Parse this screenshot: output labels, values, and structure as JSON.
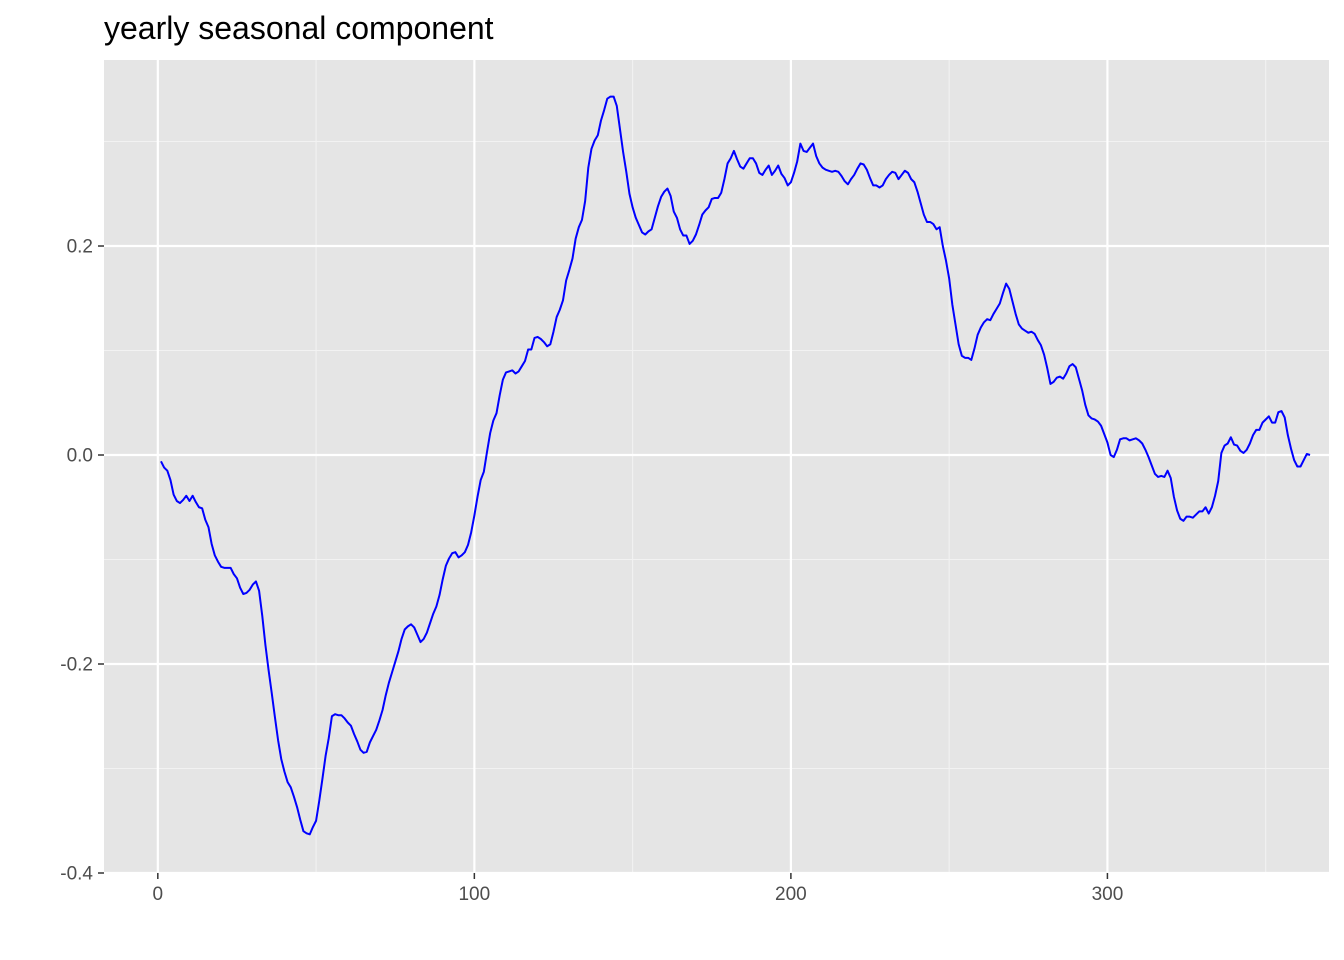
{
  "colors": {
    "panel_background": "#e5e5e5",
    "grid_major": "#ffffff",
    "grid_minor": "#f2f2f2",
    "line": "#0000ff",
    "tick_label": "#4d4d4d",
    "tick_mark": "#333333"
  },
  "chart_data": {
    "type": "line",
    "title": "yearly seasonal component",
    "xlabel": "",
    "ylabel": "",
    "xlim": [
      -17,
      370
    ],
    "ylim": [
      -0.4,
      0.378
    ],
    "x_ticks": [
      0,
      100,
      200,
      300
    ],
    "x_tick_labels": [
      "0",
      "100",
      "200",
      "300"
    ],
    "y_ticks": [
      -0.4,
      -0.2,
      0.0,
      0.2
    ],
    "y_tick_labels": [
      "-0.4",
      "-0.2",
      "0.0",
      "0.2"
    ],
    "x_minor": [
      50,
      150,
      250,
      350
    ],
    "y_minor": [
      -0.3,
      -0.1,
      0.1,
      0.3
    ],
    "grid": true,
    "legend": "none",
    "series": [
      {
        "x": [
          1,
          2,
          3,
          4,
          5,
          6,
          7,
          8,
          9,
          10,
          11,
          12,
          13,
          14,
          15,
          16,
          17,
          18,
          19,
          20,
          21,
          22,
          23,
          24,
          25,
          26,
          27,
          28,
          29,
          30,
          31,
          32,
          33,
          34,
          35,
          36,
          37,
          38,
          39,
          40,
          41,
          42,
          43,
          44,
          45,
          46,
          47,
          48,
          49,
          50,
          51,
          52,
          53,
          54,
          55,
          56,
          57,
          58,
          59,
          60,
          61,
          62,
          63,
          64,
          65,
          66,
          67,
          68,
          69,
          70,
          71,
          72,
          73,
          74,
          75,
          76,
          77,
          78,
          79,
          80,
          81,
          82,
          83,
          84,
          85,
          86,
          87,
          88,
          89,
          90,
          91,
          92,
          93,
          94,
          95,
          96,
          97,
          98,
          99,
          100,
          101,
          102,
          103,
          104,
          105,
          106,
          107,
          108,
          109,
          110,
          111,
          112,
          113,
          114,
          115,
          116,
          117,
          118,
          119,
          120,
          121,
          122,
          123,
          124,
          125,
          126,
          127,
          128,
          129,
          130,
          131,
          132,
          133,
          134,
          135,
          136,
          137,
          138,
          139,
          140,
          141,
          142,
          143,
          144,
          145,
          146,
          147,
          148,
          149,
          150,
          151,
          152,
          153,
          154,
          155,
          156,
          157,
          158,
          159,
          160,
          161,
          162,
          163,
          164,
          165,
          166,
          167,
          168,
          169,
          170,
          171,
          172,
          173,
          174,
          175,
          176,
          177,
          178,
          179,
          180,
          181,
          182,
          183,
          184,
          185,
          186,
          187,
          188,
          189,
          190,
          191,
          192,
          193,
          194,
          195,
          196,
          197,
          198,
          199,
          200,
          201,
          202,
          203,
          204,
          205,
          206,
          207,
          208,
          209,
          210,
          211,
          212,
          213,
          214,
          215,
          216,
          217,
          218,
          219,
          220,
          221,
          222,
          223,
          224,
          225,
          226,
          227,
          228,
          229,
          230,
          231,
          232,
          233,
          234,
          235,
          236,
          237,
          238,
          239,
          240,
          241,
          242,
          243,
          244,
          245,
          246,
          247,
          248,
          249,
          250,
          251,
          252,
          253,
          254,
          255,
          256,
          257,
          258,
          259,
          260,
          261,
          262,
          263,
          264,
          265,
          266,
          267,
          268,
          269,
          270,
          271,
          272,
          273,
          274,
          275,
          276,
          277,
          278,
          279,
          280,
          281,
          282,
          283,
          284,
          285,
          286,
          287,
          288,
          289,
          290,
          291,
          292,
          293,
          294,
          295,
          296,
          297,
          298,
          299,
          300,
          301,
          302,
          303,
          304,
          305,
          306,
          307,
          308,
          309,
          310,
          311,
          312,
          313,
          314,
          315,
          316,
          317,
          318,
          319,
          320,
          321,
          322,
          323,
          324,
          325,
          326,
          327,
          328,
          329,
          330,
          331,
          332,
          333,
          334,
          335,
          336,
          337,
          338,
          339,
          340,
          341,
          342,
          343,
          344,
          345,
          346,
          347,
          348,
          349,
          350,
          351,
          352,
          353,
          354,
          355,
          356,
          357,
          358,
          359,
          360,
          361,
          362,
          363,
          364
        ],
        "values": [
          -0.006,
          -0.012,
          -0.015,
          -0.024,
          -0.038,
          -0.044,
          -0.046,
          -0.043,
          -0.039,
          -0.044,
          -0.039,
          -0.045,
          -0.05,
          -0.051,
          -0.062,
          -0.069,
          -0.085,
          -0.096,
          -0.102,
          -0.107,
          -0.108,
          -0.108,
          -0.108,
          -0.114,
          -0.118,
          -0.127,
          -0.133,
          -0.132,
          -0.129,
          -0.124,
          -0.121,
          -0.13,
          -0.154,
          -0.182,
          -0.206,
          -0.228,
          -0.251,
          -0.273,
          -0.291,
          -0.303,
          -0.313,
          -0.318,
          -0.327,
          -0.337,
          -0.349,
          -0.36,
          -0.362,
          -0.363,
          -0.356,
          -0.35,
          -0.331,
          -0.31,
          -0.288,
          -0.271,
          -0.25,
          -0.248,
          -0.249,
          -0.249,
          -0.252,
          -0.256,
          -0.259,
          -0.267,
          -0.274,
          -0.282,
          -0.285,
          -0.284,
          -0.275,
          -0.269,
          -0.263,
          -0.254,
          -0.244,
          -0.23,
          -0.218,
          -0.208,
          -0.198,
          -0.188,
          -0.176,
          -0.167,
          -0.164,
          -0.162,
          -0.165,
          -0.172,
          -0.179,
          -0.176,
          -0.17,
          -0.161,
          -0.152,
          -0.145,
          -0.134,
          -0.119,
          -0.106,
          -0.099,
          -0.094,
          -0.093,
          -0.098,
          -0.096,
          -0.093,
          -0.086,
          -0.074,
          -0.058,
          -0.04,
          -0.024,
          -0.016,
          0.003,
          0.021,
          0.033,
          0.04,
          0.057,
          0.072,
          0.079,
          0.08,
          0.081,
          0.078,
          0.08,
          0.085,
          0.09,
          0.101,
          0.101,
          0.112,
          0.113,
          0.111,
          0.108,
          0.104,
          0.106,
          0.118,
          0.132,
          0.139,
          0.148,
          0.167,
          0.177,
          0.188,
          0.207,
          0.218,
          0.225,
          0.243,
          0.275,
          0.293,
          0.301,
          0.306,
          0.32,
          0.33,
          0.341,
          0.343,
          0.343,
          0.334,
          0.312,
          0.29,
          0.271,
          0.25,
          0.237,
          0.227,
          0.22,
          0.213,
          0.211,
          0.214,
          0.216,
          0.227,
          0.238,
          0.247,
          0.252,
          0.255,
          0.248,
          0.233,
          0.227,
          0.216,
          0.21,
          0.21,
          0.202,
          0.205,
          0.211,
          0.22,
          0.23,
          0.234,
          0.237,
          0.245,
          0.246,
          0.246,
          0.251,
          0.264,
          0.279,
          0.284,
          0.291,
          0.283,
          0.276,
          0.274,
          0.279,
          0.284,
          0.284,
          0.279,
          0.27,
          0.268,
          0.273,
          0.277,
          0.268,
          0.272,
          0.277,
          0.269,
          0.265,
          0.258,
          0.261,
          0.27,
          0.281,
          0.298,
          0.291,
          0.29,
          0.294,
          0.298,
          0.286,
          0.279,
          0.275,
          0.273,
          0.272,
          0.271,
          0.272,
          0.271,
          0.267,
          0.262,
          0.259,
          0.264,
          0.268,
          0.274,
          0.279,
          0.278,
          0.273,
          0.265,
          0.258,
          0.258,
          0.256,
          0.258,
          0.264,
          0.268,
          0.271,
          0.27,
          0.264,
          0.268,
          0.272,
          0.27,
          0.264,
          0.261,
          0.252,
          0.241,
          0.23,
          0.223,
          0.223,
          0.221,
          0.216,
          0.218,
          0.2,
          0.186,
          0.169,
          0.144,
          0.125,
          0.106,
          0.095,
          0.093,
          0.093,
          0.091,
          0.102,
          0.115,
          0.122,
          0.127,
          0.13,
          0.129,
          0.135,
          0.14,
          0.145,
          0.155,
          0.164,
          0.159,
          0.147,
          0.135,
          0.125,
          0.121,
          0.119,
          0.117,
          0.118,
          0.116,
          0.11,
          0.105,
          0.096,
          0.083,
          0.068,
          0.07,
          0.074,
          0.075,
          0.073,
          0.078,
          0.085,
          0.087,
          0.084,
          0.073,
          0.062,
          0.048,
          0.038,
          0.035,
          0.034,
          0.032,
          0.028,
          0.02,
          0.012,
          0.0,
          -0.002,
          0.005,
          0.015,
          0.016,
          0.016,
          0.014,
          0.015,
          0.016,
          0.014,
          0.011,
          0.005,
          -0.002,
          -0.01,
          -0.018,
          -0.021,
          -0.02,
          -0.021,
          -0.015,
          -0.022,
          -0.04,
          -0.053,
          -0.061,
          -0.063,
          -0.059,
          -0.059,
          -0.06,
          -0.057,
          -0.054,
          -0.054,
          -0.05,
          -0.056,
          -0.05,
          -0.039,
          -0.025,
          0.002,
          0.009,
          0.011,
          0.017,
          0.01,
          0.009,
          0.004,
          0.002,
          0.005,
          0.011,
          0.019,
          0.024,
          0.024,
          0.031,
          0.034,
          0.037,
          0.031,
          0.031,
          0.041,
          0.042,
          0.036,
          0.019,
          0.006,
          -0.005,
          -0.011,
          -0.011,
          -0.005,
          0.001,
          0.0
        ]
      }
    ]
  }
}
